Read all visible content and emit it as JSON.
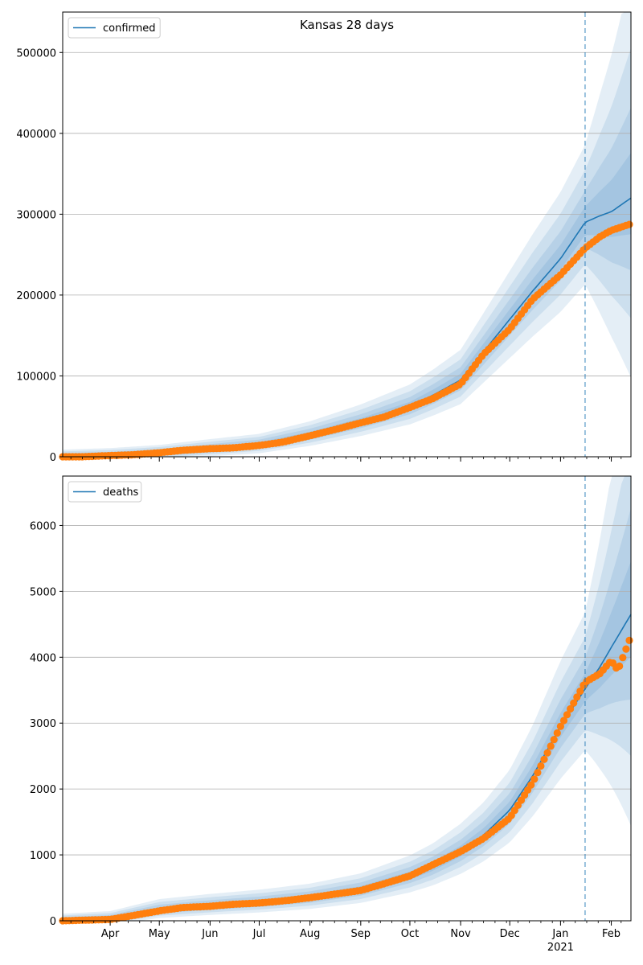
{
  "chart_data": [
    {
      "type": "line",
      "title": "Kansas 28 days",
      "xlabel": "",
      "ylabel": "",
      "legend": {
        "entries": [
          "confirmed"
        ],
        "placement": "top-left"
      },
      "grid": "y",
      "x_range": [
        "2020-03-03",
        "2021-02-13"
      ],
      "ylim": [
        0,
        550000
      ],
      "yticks": [
        0,
        100000,
        200000,
        300000,
        400000,
        500000
      ],
      "forecast_start": "2021-01-16",
      "series": [
        {
          "name": "confirmed",
          "kind": "model",
          "color": "#1f77b4",
          "x": [
            "2020-03-03",
            "2020-04-01",
            "2020-05-01",
            "2020-06-01",
            "2020-07-01",
            "2020-08-01",
            "2020-09-01",
            "2020-10-01",
            "2020-10-15",
            "2020-11-01",
            "2020-11-15",
            "2020-12-01",
            "2020-12-15",
            "2021-01-01",
            "2021-01-16",
            "2021-01-25",
            "2021-02-01",
            "2021-02-13"
          ],
          "values": [
            0,
            1500,
            4500,
            10000,
            15000,
            27000,
            43000,
            62000,
            76000,
            95000,
            130000,
            170000,
            205000,
            245000,
            290000,
            298000,
            303000,
            320000
          ]
        },
        {
          "name": "observed",
          "kind": "markers",
          "color": "#ff7f0e",
          "x": [
            "2020-03-03",
            "2020-03-15",
            "2020-04-01",
            "2020-04-15",
            "2020-05-01",
            "2020-05-15",
            "2020-06-01",
            "2020-06-15",
            "2020-07-01",
            "2020-07-15",
            "2020-08-01",
            "2020-08-15",
            "2020-09-01",
            "2020-09-15",
            "2020-10-01",
            "2020-10-15",
            "2020-11-01",
            "2020-11-15",
            "2020-12-01",
            "2020-12-15",
            "2021-01-01",
            "2021-01-16",
            "2021-01-25",
            "2021-02-01",
            "2021-02-13"
          ],
          "values": [
            0,
            0,
            1500,
            2500,
            5000,
            8000,
            10000,
            11000,
            14000,
            18000,
            26000,
            33000,
            42000,
            49000,
            61000,
            72000,
            90000,
            127000,
            158000,
            195000,
            225000,
            258000,
            272000,
            280000,
            288000
          ]
        }
      ]
    },
    {
      "type": "line",
      "title": "",
      "xlabel": "",
      "ylabel": "",
      "legend": {
        "entries": [
          "deaths"
        ],
        "placement": "top-left"
      },
      "grid": "y",
      "x_range": [
        "2020-03-03",
        "2021-02-13"
      ],
      "ylim": [
        0,
        6750
      ],
      "yticks": [
        0,
        1000,
        2000,
        3000,
        4000,
        5000,
        6000
      ],
      "xticks": [
        "Apr",
        "May",
        "Jun",
        "Jul",
        "Aug",
        "Sep",
        "Oct",
        "Nov",
        "Dec",
        "Jan",
        "Feb"
      ],
      "xtick_sub": "2021",
      "forecast_start": "2021-01-16",
      "series": [
        {
          "name": "deaths",
          "kind": "model",
          "color": "#1f77b4",
          "x": [
            "2020-03-03",
            "2020-04-01",
            "2020-05-01",
            "2020-06-01",
            "2020-07-01",
            "2020-08-01",
            "2020-09-01",
            "2020-10-01",
            "2020-10-15",
            "2020-11-01",
            "2020-11-15",
            "2020-12-01",
            "2020-12-15",
            "2021-01-01",
            "2021-01-16",
            "2021-01-25",
            "2021-02-01",
            "2021-02-13"
          ],
          "values": [
            0,
            30,
            170,
            230,
            280,
            350,
            470,
            680,
            820,
            1050,
            1300,
            1680,
            2200,
            2950,
            3520,
            3850,
            4150,
            4650
          ]
        },
        {
          "name": "observed",
          "kind": "markers",
          "color": "#ff7f0e",
          "x": [
            "2020-03-03",
            "2020-04-01",
            "2020-04-15",
            "2020-05-01",
            "2020-05-15",
            "2020-06-01",
            "2020-06-15",
            "2020-07-01",
            "2020-07-15",
            "2020-08-01",
            "2020-08-15",
            "2020-09-01",
            "2020-09-15",
            "2020-10-01",
            "2020-10-15",
            "2020-11-01",
            "2020-11-15",
            "2020-12-01",
            "2020-12-15",
            "2021-01-01",
            "2021-01-10",
            "2021-01-16",
            "2021-01-25",
            "2021-02-01",
            "2021-02-05",
            "2021-02-13"
          ],
          "values": [
            0,
            20,
            80,
            150,
            200,
            220,
            250,
            270,
            300,
            350,
            400,
            460,
            560,
            680,
            850,
            1050,
            1250,
            1560,
            2100,
            2950,
            3350,
            3620,
            3750,
            3950,
            3800,
            4320
          ]
        }
      ]
    }
  ]
}
